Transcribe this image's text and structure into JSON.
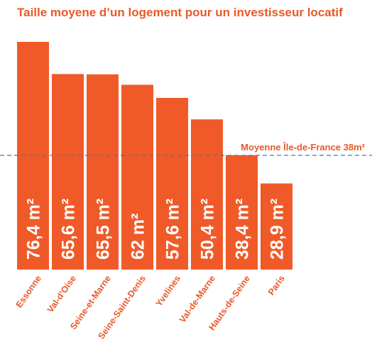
{
  "chart_data": {
    "type": "bar",
    "title": "Taille moyene d’un logement pour un investisseur locatif",
    "categories": [
      "Essonne",
      "Val-d’Oise",
      "Seine-et-Marne",
      "Seine-Saint-Denis",
      "Yvelines",
      "Val-de-Marne",
      "Hauts-de-Seine",
      "Paris"
    ],
    "values": [
      76.4,
      65.6,
      65.5,
      62,
      57.6,
      50.4,
      38.4,
      28.9
    ],
    "value_labels": [
      "76,4 m²",
      "65,6 m²",
      "65,5 m²",
      "62 m²",
      "57,6 m²",
      "50,4 m²",
      "38,4 m²",
      "28,9 m²"
    ],
    "reference_line": {
      "label": "Moyenne Île-de-France 38m²",
      "value": 38
    },
    "ylim": [
      0,
      76.4
    ],
    "xlabel": "",
    "ylabel": "",
    "grid": false
  },
  "colors": {
    "bar": "#f05a28",
    "text": "#e8592a",
    "reference_line": "#3f7cb8",
    "bar_label": "#ffffff"
  }
}
